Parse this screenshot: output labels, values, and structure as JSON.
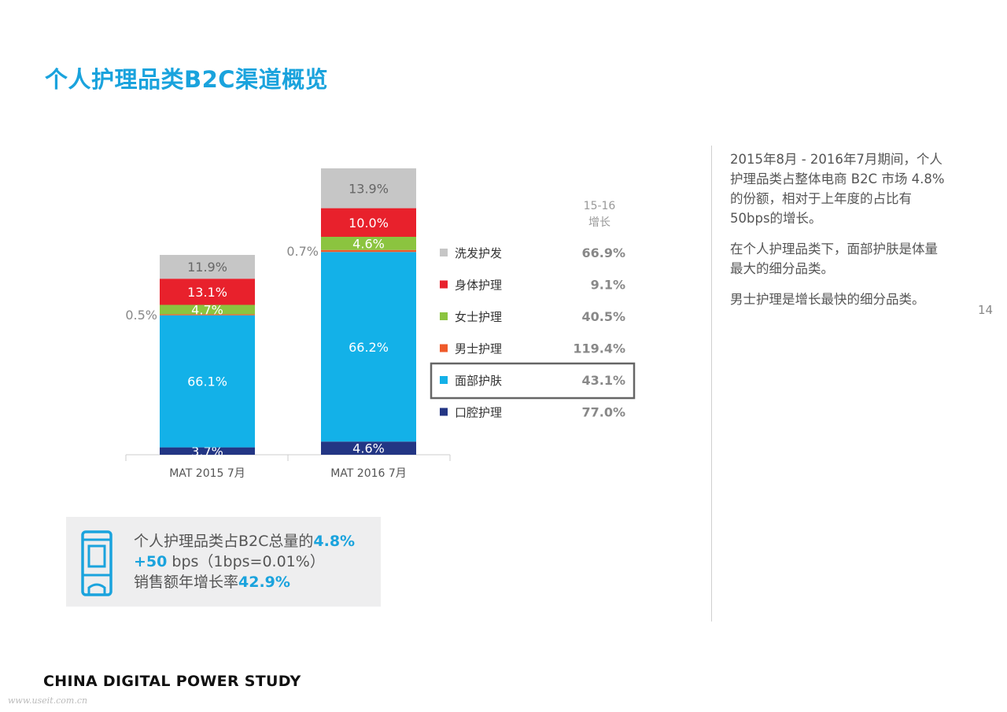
{
  "page": {
    "title": "个人护理品类B2C渠道概览",
    "footer": "CHINA DIGITAL POWER STUDY",
    "page_number": "14",
    "watermark": "www.useit.com.cn"
  },
  "legend_header": "15-16\n增长",
  "note": {
    "line1_prefix": "个人护理品类占B2C总量的",
    "line1_value": "4.8%",
    "line2_value": "+50",
    "line2_suffix": " bps（1bps=0.01%）",
    "line3_prefix": "销售额年增长率",
    "line3_value": "42.9%",
    "icon": "bottle-icon"
  },
  "right_text": [
    "2015年8月 - 2016年7月期间，个人护理品类占整体电商 B2C 市场 4.8%的份额，相对于上年度的占比有50bps的增长。",
    "在个人护理品类下，面部护肤是体量最大的细分品类。",
    "男士护理是增长最快的细分品类。"
  ],
  "chart_data": {
    "type": "bar",
    "stacked": true,
    "categories": [
      "MAT 2015 7月",
      "MAT 2016 7月"
    ],
    "series": [
      {
        "name": "口腔护理",
        "values": [
          3.7,
          4.6
        ],
        "labels": [
          "3.7%",
          "4.6%"
        ],
        "color": "#233684",
        "growth": "77.0%"
      },
      {
        "name": "面部护肤",
        "values": [
          66.1,
          66.2
        ],
        "labels": [
          "66.1%",
          "66.2%"
        ],
        "color": "#13b1e8",
        "growth": "43.1%",
        "highlight": true
      },
      {
        "name": "男士护理",
        "values": [
          0.5,
          0.7
        ],
        "labels": [
          "0.5%",
          "0.7%"
        ],
        "color": "#ef5a2a",
        "growth": "119.4%"
      },
      {
        "name": "女士护理",
        "values": [
          4.7,
          4.6
        ],
        "labels": [
          "4.7%",
          "4.6%"
        ],
        "color": "#8bc43f",
        "growth": "40.5%"
      },
      {
        "name": "身体护理",
        "values": [
          13.1,
          10.0
        ],
        "labels": [
          "13.1%",
          "10.0%"
        ],
        "color": "#e8212c",
        "growth": "9.1%"
      },
      {
        "name": "洗发护发",
        "values": [
          11.9,
          13.9
        ],
        "labels": [
          "11.9%",
          "13.9%"
        ],
        "color": "#c6c6c6",
        "growth": "66.9%"
      }
    ],
    "legend_order": [
      "洗发护发",
      "身体护理",
      "女士护理",
      "男士护理",
      "面部护肤",
      "口腔护理"
    ],
    "ylim": [
      0,
      100
    ]
  }
}
